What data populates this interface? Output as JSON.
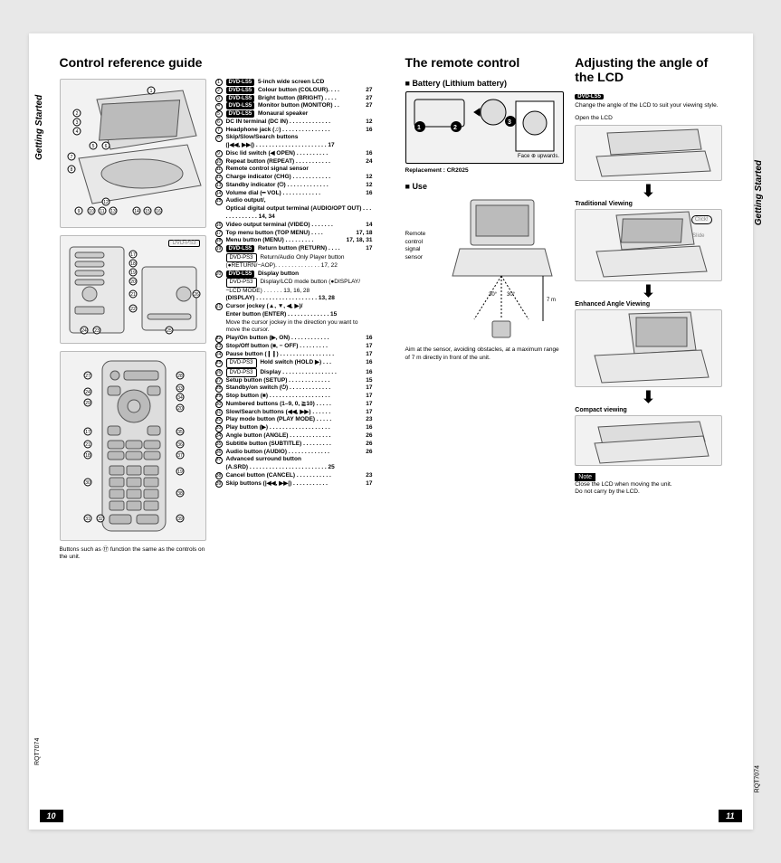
{
  "left": {
    "title": "Control reference guide",
    "sideLabel": "Getting Started",
    "docCode": "RQT7074",
    "pageNum": "10",
    "footnote": "Buttons such as ⑰ function the same as the controls on the unit.",
    "ref": [
      {
        "t": "5-inch wide screen LCD",
        "b": "DVD-LS5"
      },
      {
        "t": "Colour button (COLOUR). . . .",
        "b": "DVD-LS5",
        "p": "27"
      },
      {
        "t": "Bright button (BRIGHT) . . . .",
        "b": "DVD-LS5",
        "p": "27"
      },
      {
        "t": "Monitor button (MONITOR) . .",
        "b": "DVD-LS5",
        "p": "27"
      },
      {
        "t": "Monaural speaker",
        "b": "DVD-LS5"
      },
      {
        "t": "DC IN terminal (DC IN) . . . . . . . . . . . . .",
        "p": "12"
      },
      {
        "t": "Headphone jack (♫) . . . . . . . . . . . . . . .",
        "p": "16"
      },
      {
        "t": "Skip/Slow/Search buttons"
      },
      {
        "t": "Disc lid switch (◀ OPEN) . . . . . . . . . .",
        "p": "16",
        "sub": "(|◀◀, ▶▶|) . . . . . . . . . . . . . . . . . . . . . . 17"
      },
      {
        "t": "Repeat button (REPEAT) . . . . . . . . . . .",
        "p": "24"
      },
      {
        "t": "Remote control signal sensor"
      },
      {
        "t": "Charge indicator (CHG) . . . . . . . . . . . .",
        "p": "12"
      },
      {
        "t": "Standby indicator (⏻) . . . . . . . . . . . . .",
        "p": "12"
      },
      {
        "t": "Volume dial (━ VOL) . . . . . . . . . . . .",
        "p": "16"
      },
      {
        "t": "Audio output/,"
      },
      {
        "t": "Video output terminal (VIDEO) . . . . . . .",
        "p": "14",
        "sub": "Optical digital output terminal (AUDIO/OPT OUT) . . . . . . . . . . . . . 14, 34"
      },
      {
        "t": "Top menu button (TOP MENU) . . . .",
        "p": "17, 18"
      },
      {
        "t": "Menu button (MENU) . . . . . . . . .",
        "p": "17, 18, 31"
      },
      {
        "t": "Return button (RETURN) . . . .",
        "b": "DVD-LS5",
        "p": "17"
      },
      {
        "t": "Display button",
        "b": "DVD-LS5",
        "sub2": "DVD-PS3  Return/Audio Only Player button (●RETURN/−AOP). . . . . . . . . . . . . . 17, 22"
      },
      {
        "t": "Cursor jockey (▲, ▼, ◀, ▶)/",
        "sub": "(DISPLAY) . . . . . . . . . . . . . . . . . . . 13, 28",
        "sub2": "DVD-PS3  Display/LCD mode button (●DISPLAY/−LCD MODE) . . . . . . 13, 16, 28"
      },
      {
        "t": "Play/On button (▶, ON) . . . . . . . . . . . .",
        "p": "16",
        "sub": "Enter button (ENTER) . . . . . . . . . . . . . 15",
        "subnote": "Move the cursor jockey in the direction you want to move the cursor."
      },
      {
        "t": "Stop/Off button (■, − OFF) . . . . . . . . .",
        "p": "17"
      },
      {
        "t": "Pause button (❙❙) . . . . . . . . . . . . . . . . .",
        "p": "17"
      },
      {
        "t": "Hold switch (HOLD ▶) . . .",
        "b2": "DVD-PS3",
        "p": "16"
      },
      {
        "t": "Display . . . . . . . . . . . . . . . . .",
        "b2": "DVD-PS3",
        "p": "16"
      },
      {
        "t": "Setup button (SETUP) . . . . . . . . . . . . .",
        "p": "15"
      },
      {
        "t": "Standby/on switch (⏻) . . . . . . . . . . . . .",
        "p": "17"
      },
      {
        "t": "Stop button (■) . . . . . . . . . . . . . . . . . . .",
        "p": "17"
      },
      {
        "t": "Numbered buttons (1–9, 0, ≧10) . . . . .",
        "p": "17"
      },
      {
        "t": "Slow/Search buttons (◀◀, ▶▶) . . . . . .",
        "p": "17"
      },
      {
        "t": "Play mode button (PLAY MODE) . . . . .",
        "p": "23"
      },
      {
        "t": "Play button (▶) . . . . . . . . . . . . . . . . . . .",
        "p": "16"
      },
      {
        "t": "Angle button (ANGLE) . . . . . . . . . . . . .",
        "p": "26"
      },
      {
        "t": "Subtitle button (SUBTITLE) . . . . . . . . .",
        "p": "26"
      },
      {
        "t": "Audio button (AUDIO) . . . . . . . . . . . . .",
        "p": "26"
      },
      {
        "t": "Advanced surround button"
      },
      {
        "t": "Cancel button (CANCEL) . . . . . . . . . . .",
        "p": "23",
        "sub": "(A.SRD) . . . . . . . . . . . . . . . . . . . . . . . . 25"
      },
      {
        "t": "Skip buttons (|◀◀, ▶▶|) . . . . . . . . . . .",
        "p": "17"
      }
    ]
  },
  "right": {
    "sideLabel": "Getting Started",
    "docCode": "RQT7074",
    "pageNum": "11",
    "remote": {
      "title": "The remote control",
      "batteryHeading": "Battery (Lithium battery)",
      "faceUp": "Face ⊕ upwards.",
      "replacement": "Replacement : CR2025",
      "useHeading": "Use",
      "sensorLabel": "Remote control signal sensor",
      "range": "7 m",
      "angles": "30° 30°",
      "aimText": "Aim at the sensor, avoiding obstacles, at a maximum range of 7 m directly in front of the unit."
    },
    "adjust": {
      "title": "Adjusting the angle of the LCD",
      "badge": "DVD-LS5",
      "intro": "Change the angle of the LCD to suit your viewing style.",
      "openLCD": "Open the LCD",
      "views": [
        "Traditional Viewing",
        "Enhanced Angle Viewing",
        "Compact viewing"
      ],
      "click": "Click!",
      "slide": "Slide",
      "noteLabel": "Note",
      "noteText1": "Close the LCD when moving the unit.",
      "noteText2": "Do not carry by the LCD."
    }
  }
}
